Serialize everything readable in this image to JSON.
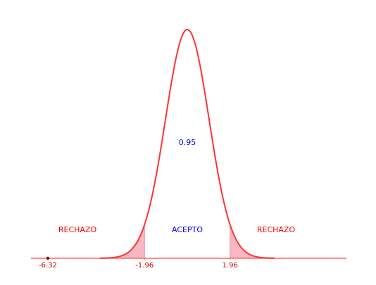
{
  "chart_data": {
    "type": "area",
    "curve": "standard-normal-density",
    "critical_values": [
      -1.96,
      1.96
    ],
    "tick_labels": [
      "-6.32",
      "-1.96",
      "1.96"
    ],
    "marked_point": -6.32,
    "central_area_label": "0.95",
    "region_labels": {
      "left": "RECHAZO",
      "center": "ACEPTO",
      "right": "RECHAZO"
    },
    "grid": false
  },
  "colors": {
    "curve": "#ff3333",
    "axis": "#ff6666",
    "tail_fill": "#f7b8c4",
    "reject_text": "#ff0000",
    "accept_text": "#0000ff",
    "tick_text": "#cc0000",
    "marked_point": "#8b0000"
  }
}
